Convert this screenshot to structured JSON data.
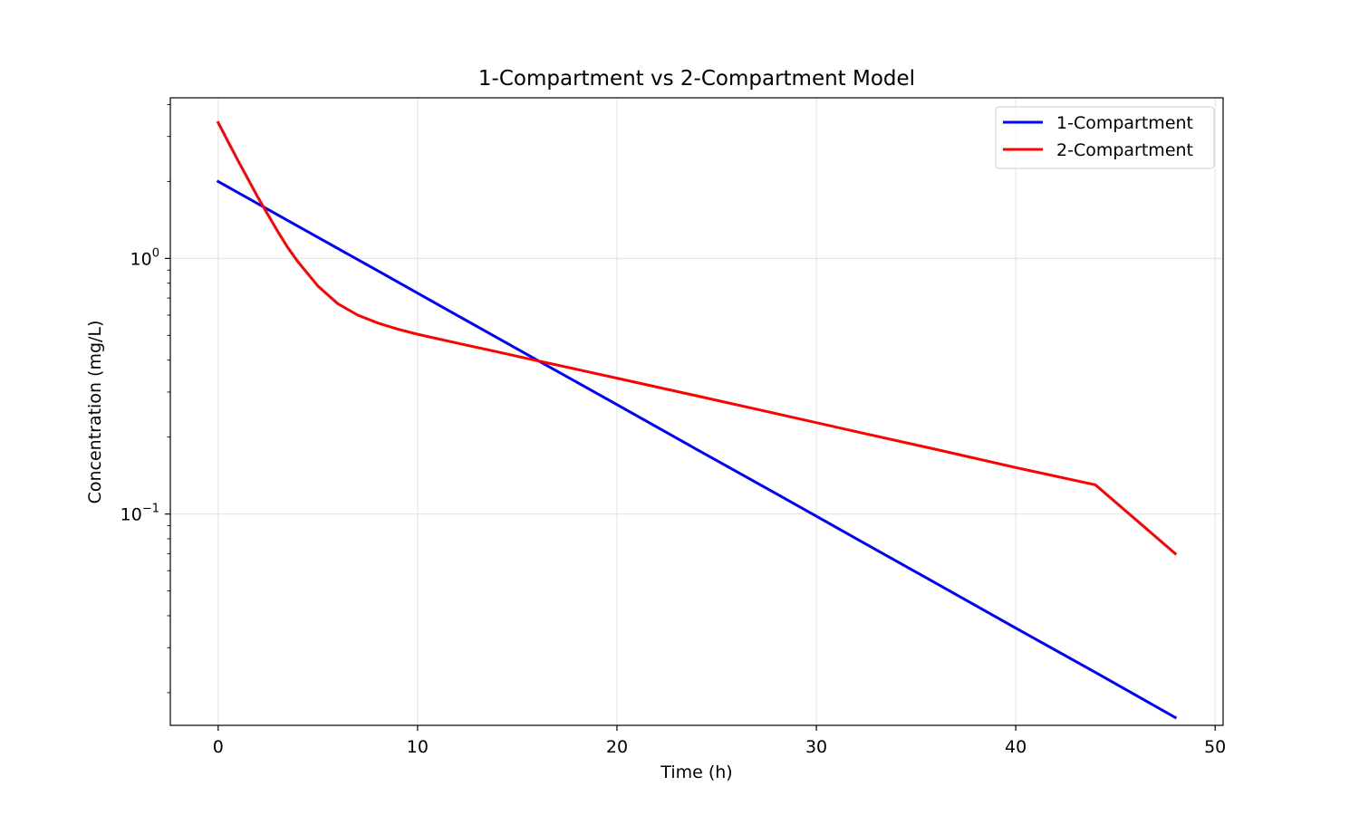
{
  "chart_data": {
    "type": "line",
    "title": "1-Compartment vs 2-Compartment Model",
    "xlabel": "Time (h)",
    "ylabel": "Concentration (mg/L)",
    "xscale": "linear",
    "yscale": "log",
    "xlim": [
      -2.4,
      50.4
    ],
    "ylim": [
      0.0149,
      4.25
    ],
    "xticks": [
      {
        "value": 0,
        "label": "0"
      },
      {
        "value": 10,
        "label": "10"
      },
      {
        "value": 20,
        "label": "20"
      },
      {
        "value": 30,
        "label": "30"
      },
      {
        "value": 40,
        "label": "40"
      },
      {
        "value": 50,
        "label": "50"
      }
    ],
    "yticks_major": [
      {
        "value": 0.1,
        "base": "10",
        "exp": "−1"
      },
      {
        "value": 1,
        "base": "10",
        "exp": "0"
      }
    ],
    "grid": true,
    "legend_position": "upper right",
    "series": [
      {
        "name": "1-Compartment",
        "color": "#0000ff",
        "x": [
          0,
          4,
          8,
          12,
          16,
          20,
          24,
          28,
          32,
          36,
          40,
          44,
          48
        ],
        "y": [
          2.0,
          1.337,
          0.895,
          0.598,
          0.4,
          0.268,
          0.179,
          0.12,
          0.0801,
          0.0536,
          0.0358,
          0.024,
          0.016
        ]
      },
      {
        "name": "2-Compartment",
        "color": "#ff0000",
        "x": [
          0,
          0.5,
          1,
          1.5,
          2,
          2.5,
          3,
          3.5,
          4,
          5,
          6,
          7,
          8,
          9,
          10,
          12,
          14,
          16,
          18,
          20,
          24,
          28,
          32,
          36,
          40,
          44,
          48
        ],
        "y": [
          3.4,
          2.86,
          2.41,
          2.04,
          1.73,
          1.48,
          1.27,
          1.1,
          0.97,
          0.78,
          0.665,
          0.6,
          0.559,
          0.529,
          0.505,
          0.466,
          0.431,
          0.398,
          0.368,
          0.34,
          0.29,
          0.247,
          0.21,
          0.179,
          0.152,
          0.13,
          0.07
        ]
      }
    ]
  }
}
